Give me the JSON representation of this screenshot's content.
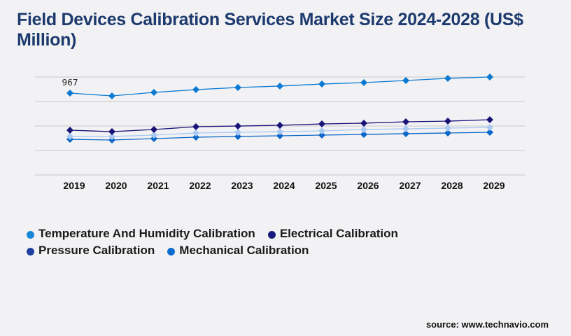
{
  "chart_data": {
    "type": "line",
    "title": "Field Devices Calibration Services Market Size 2024-2028 (US$ Million)",
    "xlabel": "",
    "ylabel": "",
    "categories": [
      "2019",
      "2020",
      "2021",
      "2022",
      "2023",
      "2024",
      "2025",
      "2026",
      "2027",
      "2028",
      "2029"
    ],
    "ylim": [
      0,
      1210
    ],
    "grid": true,
    "legend_position": "bottom-left",
    "series": [
      {
        "name": "Temperature And Humidity Calibration",
        "line_color": "#0a7ad2",
        "legend_color": "#1a86d8",
        "values": [
          967,
          934,
          975,
          1008,
          1033,
          1050,
          1074,
          1091,
          1116,
          1141,
          1157
        ]
      },
      {
        "name": "Electrical Calibration",
        "line_color": "#1a1478",
        "legend_color": "#1a1a7e",
        "values": [
          529,
          512,
          537,
          570,
          578,
          587,
          603,
          612,
          628,
          636,
          653
        ]
      },
      {
        "name": "Pressure Calibration",
        "line_color": "#a9c9f3",
        "legend_color": "#1f3fa0",
        "values": [
          455,
          455,
          471,
          496,
          504,
          512,
          521,
          537,
          545,
          554,
          562
        ]
      },
      {
        "name": "Mechanical Calibration",
        "line_color": "#0a66c8",
        "legend_color": "#0a6ed1",
        "values": [
          421,
          413,
          430,
          446,
          455,
          463,
          471,
          479,
          488,
          496,
          504
        ]
      }
    ],
    "annotations": [
      {
        "series": 0,
        "index": 0,
        "text": "967"
      }
    ]
  },
  "source": "source: www.technavio.com"
}
